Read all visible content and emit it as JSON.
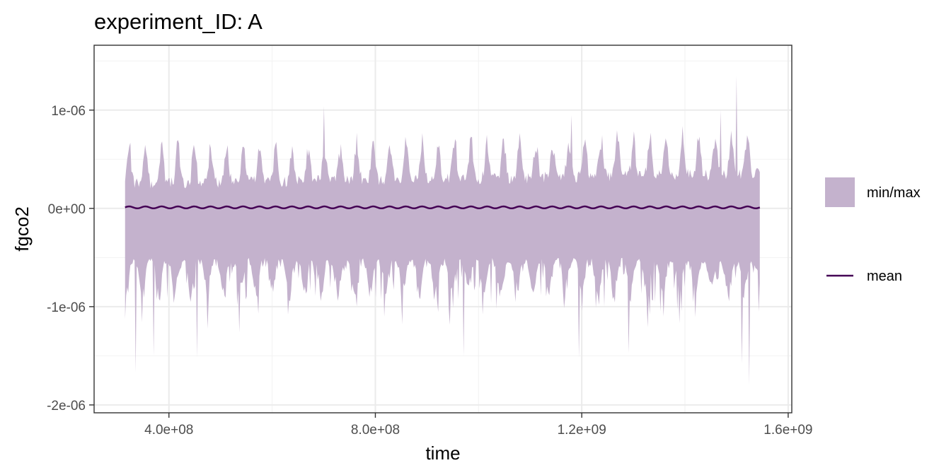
{
  "chart_data": {
    "type": "area",
    "title": "experiment_ID: A",
    "xlabel": "time",
    "ylabel": "fgco2",
    "xlim": [
      255000000,
      1607000000
    ],
    "ylim": [
      -2.08e-06,
      1.66e-06
    ],
    "x_ticks": [
      {
        "value": 400000000,
        "label": "4.0e+08"
      },
      {
        "value": 800000000,
        "label": "8.0e+08"
      },
      {
        "value": 1200000000,
        "label": "1.2e+09"
      },
      {
        "value": 1600000000,
        "label": "1.6e+09"
      }
    ],
    "y_ticks": [
      {
        "value": 1e-06,
        "label": "1e-06"
      },
      {
        "value": 0,
        "label": "0e+00"
      },
      {
        "value": -1e-06,
        "label": "-1e-06"
      },
      {
        "value": -2e-06,
        "label": "-2e-06"
      }
    ],
    "x_start": 315000000,
    "x_end": 1545000000,
    "sample_count": 600,
    "season_period": 31536000,
    "upper_envelope": {
      "base": 2.5e-07,
      "seasonal_amplitude": 3.8e-07,
      "trend": 1e-07,
      "spikes": [
        {
          "x": 700000000,
          "y": 1.04e-06
        },
        {
          "x": 1180000000,
          "y": 9.5e-07
        },
        {
          "x": 1470000000,
          "y": 1e-06
        },
        {
          "x": 1500000000,
          "y": 1.35e-06
        }
      ]
    },
    "lower_envelope": {
      "base": -5.5e-07,
      "seasonal_amplitude": 3.5e-07,
      "spikes": [
        {
          "x": 335000000,
          "y": -1.67e-06
        },
        {
          "x": 370000000,
          "y": -1.5e-06
        },
        {
          "x": 455000000,
          "y": -1.52e-06
        },
        {
          "x": 970000000,
          "y": -1.5e-06
        },
        {
          "x": 1195000000,
          "y": -1.52e-06
        },
        {
          "x": 1290000000,
          "y": -1.47e-06
        },
        {
          "x": 1510000000,
          "y": -1.58e-06
        },
        {
          "x": 1525000000,
          "y": -1.8e-06
        }
      ]
    },
    "mean": {
      "base": 1e-08,
      "seasonal_amplitude": 1e-08
    },
    "series": [
      {
        "name": "min/max",
        "kind": "ribbon",
        "color": "#c4b2cd"
      },
      {
        "name": "mean",
        "kind": "line",
        "color": "#440154"
      }
    ],
    "grid": true,
    "legend_position": "right"
  }
}
